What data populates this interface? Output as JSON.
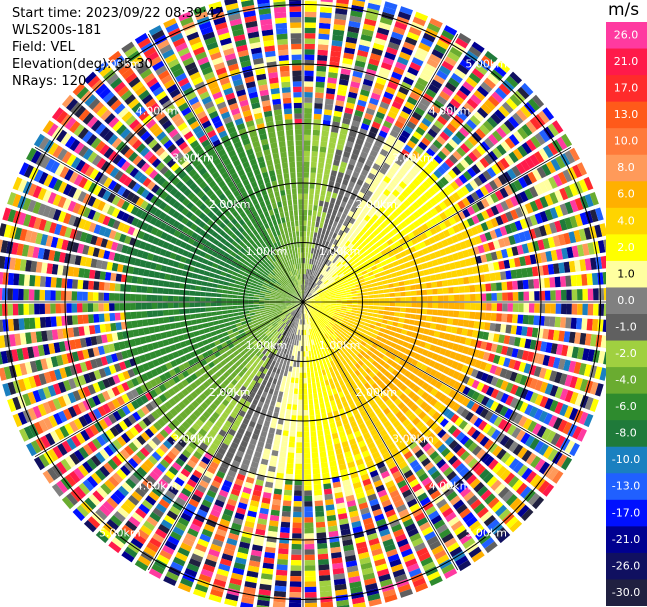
{
  "info": {
    "start_time": "Start time: 2023/09/22 08:39:42",
    "instrument": "WLS200s-181",
    "field": "Field: VEL",
    "elevation": "Elevation(deg): 35.30",
    "nrays": "NRays: 120"
  },
  "colorbar": {
    "unit": "m/s",
    "ticks": [
      "26.0",
      "21.0",
      "17.0",
      "13.0",
      "10.0",
      "8.0",
      "6.0",
      "4.0",
      "2.0",
      "1.0",
      "0.0",
      "-1.0",
      "-2.0",
      "-4.0",
      "-6.0",
      "-8.0",
      "-10.0",
      "-13.0",
      "-17.0",
      "-21.0",
      "-26.0",
      "-30.0"
    ],
    "colors": [
      "#ff3aa0",
      "#ff1a4a",
      "#ff2b2b",
      "#ff5a1a",
      "#ff7a3a",
      "#ff9a5a",
      "#ffb000",
      "#ffd400",
      "#ffff00",
      "#ffffa0",
      "#808080",
      "#606060",
      "#a0d040",
      "#6aac30",
      "#2e8b2e",
      "#1f7a3a",
      "#1a80c0",
      "#2060ff",
      "#0010ff",
      "#000090",
      "#101060",
      "#202040"
    ]
  },
  "chart_data": {
    "type": "heatmap",
    "projection": "polar PPI",
    "field": "VEL",
    "unit": "m/s",
    "n_rays": 120,
    "range_ring_labels": [
      "1.00km",
      "2.00km",
      "3.00km",
      "4.00km",
      "5.00km"
    ],
    "range_rings_km": [
      1,
      2,
      3,
      4,
      5
    ],
    "max_range_km": 5.2,
    "color_range": [
      -30,
      26
    ],
    "summary": {
      "inner_positive_sector": "east to south-east, values 2 to 8 m/s",
      "inner_negative_sector": "west to south-west, values -6 to -1 m/s",
      "outer_ring_km": 3.3,
      "outer_ring_pattern": "noise beyond ~3.3 km"
    }
  }
}
